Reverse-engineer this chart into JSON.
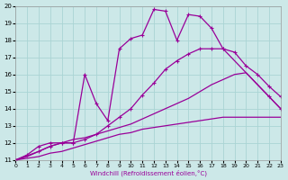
{
  "xlabel": "Windchill (Refroidissement éolien,°C)",
  "bg_color": "#cce8e8",
  "grid_color": "#aad4d4",
  "line_color": "#990099",
  "xlim": [
    0,
    23
  ],
  "ylim": [
    11,
    20
  ],
  "xticks": [
    0,
    1,
    2,
    3,
    4,
    5,
    6,
    7,
    8,
    9,
    10,
    11,
    12,
    13,
    14,
    15,
    16,
    17,
    18,
    19,
    20,
    21,
    22,
    23
  ],
  "yticks": [
    11,
    12,
    13,
    14,
    15,
    16,
    17,
    18,
    19,
    20
  ],
  "lines": [
    {
      "x": [
        0,
        1,
        2,
        3,
        4,
        5,
        6,
        7,
        8,
        9,
        10,
        11,
        12,
        13,
        14,
        15,
        16,
        17,
        18,
        19,
        20,
        21,
        22,
        23
      ],
      "y": [
        11,
        11.1,
        11.2,
        11.4,
        11.5,
        11.7,
        11.9,
        12.1,
        12.3,
        12.5,
        12.6,
        12.8,
        12.9,
        13.0,
        13.1,
        13.2,
        13.3,
        13.4,
        13.5,
        13.5,
        13.5,
        13.5,
        13.5,
        13.5
      ],
      "marker": false,
      "lw": 0.9
    },
    {
      "x": [
        0,
        1,
        2,
        3,
        4,
        5,
        6,
        7,
        8,
        9,
        10,
        11,
        12,
        13,
        14,
        15,
        16,
        17,
        18,
        19,
        20,
        21,
        22,
        23
      ],
      "y": [
        11,
        11.2,
        11.5,
        11.8,
        12.0,
        12.2,
        12.3,
        12.5,
        12.7,
        12.9,
        13.1,
        13.4,
        13.7,
        14.0,
        14.3,
        14.6,
        15.0,
        15.4,
        15.7,
        16.0,
        16.1,
        15.4,
        14.7,
        14.0
      ],
      "marker": false,
      "lw": 0.9
    },
    {
      "x": [
        0,
        2,
        3,
        4,
        5,
        6,
        7,
        8,
        9,
        10,
        11,
        12,
        13,
        14,
        15,
        16,
        17,
        18,
        19,
        20,
        21,
        22,
        23
      ],
      "y": [
        11,
        11.5,
        11.8,
        12.0,
        12.0,
        12.2,
        12.5,
        13.0,
        13.5,
        14.0,
        14.8,
        15.5,
        16.3,
        16.8,
        17.2,
        17.5,
        17.5,
        17.5,
        17.3,
        16.5,
        16.0,
        15.3,
        14.7
      ],
      "marker": true,
      "lw": 0.9
    },
    {
      "x": [
        0,
        1,
        2,
        3,
        4,
        5,
        6,
        7,
        8,
        9,
        10,
        11,
        12,
        13,
        14,
        15,
        16,
        17,
        18,
        22,
        23
      ],
      "y": [
        11,
        11.3,
        11.8,
        12.0,
        12.0,
        12.0,
        16.0,
        14.3,
        13.3,
        17.5,
        18.1,
        18.3,
        19.8,
        19.7,
        18.0,
        19.5,
        19.4,
        18.7,
        17.5,
        14.7,
        14.0
      ],
      "marker": true,
      "lw": 0.9
    }
  ]
}
